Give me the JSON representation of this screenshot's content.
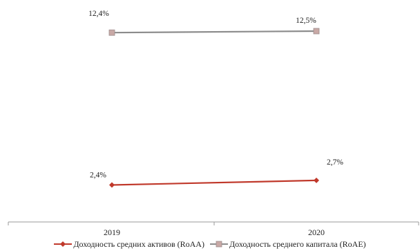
{
  "chart_data": {
    "type": "line",
    "categories": [
      "2019",
      "2020"
    ],
    "series": [
      {
        "name": "Доходность средних активов (RoAA)",
        "values": [
          2.4,
          2.7
        ],
        "labels": [
          "2,4%",
          "2,7%"
        ],
        "color": "#c0392b",
        "marker": "diamond"
      },
      {
        "name": "Доходность среднего капитала (RoAE)",
        "values": [
          12.4,
          12.5
        ],
        "labels": [
          "12,4%",
          "12,5%"
        ],
        "color": "#8c8c8c",
        "marker_color": "#c9a9a6",
        "marker": "square"
      }
    ],
    "title": "",
    "xlabel": "",
    "ylabel": "",
    "ylim": [
      0,
      14
    ],
    "grid": false,
    "legend_position": "bottom"
  }
}
